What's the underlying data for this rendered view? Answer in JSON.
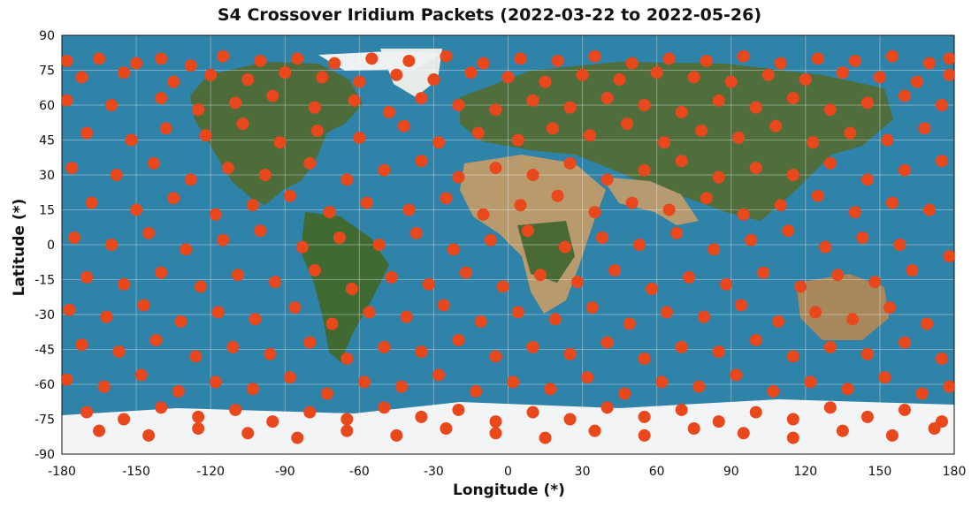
{
  "chart_data": {
    "type": "scatter",
    "title": "S4 Crossover Iridium Packets (2022-03-22 to 2022-05-26)",
    "xlabel": "Longitude (*)",
    "ylabel": "Latitude (*)",
    "xlim": [
      -180,
      180
    ],
    "ylim": [
      -90,
      90
    ],
    "xticks": [
      -180,
      -150,
      -120,
      -90,
      -60,
      -30,
      0,
      30,
      60,
      90,
      120,
      150,
      180
    ],
    "yticks": [
      90,
      75,
      60,
      45,
      30,
      15,
      0,
      -15,
      -30,
      -45,
      -60,
      -75,
      -90
    ],
    "grid": true,
    "background": "world satellite map",
    "marker_color": "#e8481c",
    "colors": {
      "ocean": "#2f82a8",
      "land": "#4e6b3a",
      "desert": "#c8a878",
      "ice": "#f2f4f5"
    },
    "series": [
      {
        "points": [
          [
            -178,
            79
          ],
          [
            -165,
            80
          ],
          [
            -150,
            78
          ],
          [
            -140,
            80
          ],
          [
            -128,
            77
          ],
          [
            -115,
            81
          ],
          [
            -100,
            79
          ],
          [
            -85,
            80
          ],
          [
            -70,
            78
          ],
          [
            -55,
            80
          ],
          [
            -40,
            79
          ],
          [
            -25,
            81
          ],
          [
            -10,
            78
          ],
          [
            5,
            80
          ],
          [
            20,
            79
          ],
          [
            35,
            81
          ],
          [
            50,
            78
          ],
          [
            65,
            80
          ],
          [
            80,
            79
          ],
          [
            95,
            81
          ],
          [
            110,
            78
          ],
          [
            125,
            80
          ],
          [
            140,
            79
          ],
          [
            155,
            81
          ],
          [
            170,
            78
          ],
          [
            178,
            80
          ],
          [
            -172,
            72
          ],
          [
            -155,
            74
          ],
          [
            -135,
            70
          ],
          [
            -120,
            73
          ],
          [
            -105,
            71
          ],
          [
            -90,
            74
          ],
          [
            -75,
            72
          ],
          [
            -60,
            70
          ],
          [
            -45,
            73
          ],
          [
            -30,
            71
          ],
          [
            -15,
            74
          ],
          [
            0,
            72
          ],
          [
            15,
            70
          ],
          [
            30,
            73
          ],
          [
            45,
            71
          ],
          [
            60,
            74
          ],
          [
            75,
            72
          ],
          [
            90,
            70
          ],
          [
            105,
            73
          ],
          [
            120,
            71
          ],
          [
            135,
            74
          ],
          [
            150,
            72
          ],
          [
            165,
            70
          ],
          [
            178,
            73
          ],
          [
            -178,
            62
          ],
          [
            -160,
            60
          ],
          [
            -140,
            63
          ],
          [
            -125,
            58
          ],
          [
            -110,
            61
          ],
          [
            -95,
            64
          ],
          [
            -78,
            59
          ],
          [
            -62,
            62
          ],
          [
            -48,
            57
          ],
          [
            -35,
            63
          ],
          [
            -20,
            60
          ],
          [
            -5,
            58
          ],
          [
            10,
            62
          ],
          [
            25,
            59
          ],
          [
            40,
            63
          ],
          [
            55,
            60
          ],
          [
            70,
            57
          ],
          [
            85,
            62
          ],
          [
            100,
            59
          ],
          [
            115,
            63
          ],
          [
            130,
            58
          ],
          [
            145,
            61
          ],
          [
            160,
            64
          ],
          [
            175,
            60
          ],
          [
            -170,
            48
          ],
          [
            -152,
            45
          ],
          [
            -138,
            50
          ],
          [
            -122,
            47
          ],
          [
            -107,
            52
          ],
          [
            -92,
            44
          ],
          [
            -77,
            49
          ],
          [
            -60,
            46
          ],
          [
            -42,
            51
          ],
          [
            -28,
            44
          ],
          [
            -12,
            48
          ],
          [
            4,
            45
          ],
          [
            18,
            50
          ],
          [
            33,
            47
          ],
          [
            48,
            52
          ],
          [
            63,
            44
          ],
          [
            78,
            49
          ],
          [
            93,
            46
          ],
          [
            108,
            51
          ],
          [
            123,
            44
          ],
          [
            138,
            48
          ],
          [
            153,
            45
          ],
          [
            168,
            50
          ],
          [
            -176,
            33
          ],
          [
            -158,
            30
          ],
          [
            -143,
            35
          ],
          [
            -128,
            28
          ],
          [
            -113,
            33
          ],
          [
            -98,
            30
          ],
          [
            -80,
            35
          ],
          [
            -65,
            28
          ],
          [
            -50,
            32
          ],
          [
            -35,
            36
          ],
          [
            -20,
            29
          ],
          [
            -5,
            33
          ],
          [
            10,
            30
          ],
          [
            25,
            35
          ],
          [
            40,
            28
          ],
          [
            55,
            32
          ],
          [
            70,
            36
          ],
          [
            85,
            29
          ],
          [
            100,
            33
          ],
          [
            115,
            30
          ],
          [
            130,
            35
          ],
          [
            145,
            28
          ],
          [
            160,
            32
          ],
          [
            175,
            36
          ],
          [
            -168,
            18
          ],
          [
            -150,
            15
          ],
          [
            -135,
            20
          ],
          [
            -118,
            13
          ],
          [
            -103,
            17
          ],
          [
            -88,
            21
          ],
          [
            -72,
            14
          ],
          [
            -57,
            18
          ],
          [
            -40,
            15
          ],
          [
            -25,
            20
          ],
          [
            -10,
            13
          ],
          [
            5,
            17
          ],
          [
            20,
            21
          ],
          [
            35,
            14
          ],
          [
            50,
            18
          ],
          [
            65,
            15
          ],
          [
            80,
            20
          ],
          [
            95,
            13
          ],
          [
            110,
            17
          ],
          [
            125,
            21
          ],
          [
            140,
            14
          ],
          [
            155,
            18
          ],
          [
            170,
            15
          ],
          [
            -175,
            3
          ],
          [
            -160,
            0
          ],
          [
            -145,
            5
          ],
          [
            -130,
            -2
          ],
          [
            -115,
            2
          ],
          [
            -100,
            6
          ],
          [
            -83,
            -1
          ],
          [
            -68,
            3
          ],
          [
            -52,
            0
          ],
          [
            -37,
            5
          ],
          [
            -22,
            -2
          ],
          [
            -7,
            2
          ],
          [
            8,
            6
          ],
          [
            23,
            -1
          ],
          [
            38,
            3
          ],
          [
            53,
            0
          ],
          [
            68,
            5
          ],
          [
            83,
            -2
          ],
          [
            98,
            2
          ],
          [
            113,
            6
          ],
          [
            128,
            -1
          ],
          [
            143,
            3
          ],
          [
            158,
            0
          ],
          [
            178,
            -5
          ],
          [
            -170,
            -14
          ],
          [
            -155,
            -17
          ],
          [
            -140,
            -12
          ],
          [
            -124,
            -18
          ],
          [
            -109,
            -13
          ],
          [
            -94,
            -16
          ],
          [
            -78,
            -11
          ],
          [
            -63,
            -19
          ],
          [
            -47,
            -14
          ],
          [
            -32,
            -17
          ],
          [
            -17,
            -12
          ],
          [
            -2,
            -18
          ],
          [
            13,
            -13
          ],
          [
            28,
            -16
          ],
          [
            43,
            -11
          ],
          [
            58,
            -19
          ],
          [
            73,
            -14
          ],
          [
            88,
            -17
          ],
          [
            103,
            -12
          ],
          [
            118,
            -18
          ],
          [
            133,
            -13
          ],
          [
            148,
            -16
          ],
          [
            163,
            -11
          ],
          [
            -177,
            -28
          ],
          [
            -162,
            -31
          ],
          [
            -147,
            -26
          ],
          [
            -132,
            -33
          ],
          [
            -117,
            -29
          ],
          [
            -102,
            -32
          ],
          [
            -86,
            -27
          ],
          [
            -71,
            -34
          ],
          [
            -56,
            -29
          ],
          [
            -41,
            -31
          ],
          [
            -26,
            -26
          ],
          [
            -11,
            -33
          ],
          [
            4,
            -29
          ],
          [
            19,
            -32
          ],
          [
            34,
            -27
          ],
          [
            49,
            -34
          ],
          [
            64,
            -29
          ],
          [
            79,
            -31
          ],
          [
            94,
            -26
          ],
          [
            109,
            -33
          ],
          [
            124,
            -29
          ],
          [
            139,
            -32
          ],
          [
            154,
            -27
          ],
          [
            169,
            -34
          ],
          [
            -172,
            -43
          ],
          [
            -157,
            -46
          ],
          [
            -142,
            -41
          ],
          [
            -126,
            -48
          ],
          [
            -111,
            -44
          ],
          [
            -96,
            -47
          ],
          [
            -80,
            -42
          ],
          [
            -65,
            -49
          ],
          [
            -50,
            -44
          ],
          [
            -35,
            -46
          ],
          [
            -20,
            -41
          ],
          [
            -5,
            -48
          ],
          [
            10,
            -44
          ],
          [
            25,
            -47
          ],
          [
            40,
            -42
          ],
          [
            55,
            -49
          ],
          [
            70,
            -44
          ],
          [
            85,
            -46
          ],
          [
            100,
            -41
          ],
          [
            115,
            -48
          ],
          [
            130,
            -44
          ],
          [
            145,
            -47
          ],
          [
            160,
            -42
          ],
          [
            175,
            -49
          ],
          [
            -178,
            -58
          ],
          [
            -163,
            -61
          ],
          [
            -148,
            -56
          ],
          [
            -133,
            -63
          ],
          [
            -118,
            -59
          ],
          [
            -103,
            -62
          ],
          [
            -88,
            -57
          ],
          [
            -73,
            -64
          ],
          [
            -58,
            -59
          ],
          [
            -43,
            -61
          ],
          [
            -28,
            -56
          ],
          [
            -13,
            -63
          ],
          [
            2,
            -59
          ],
          [
            17,
            -62
          ],
          [
            32,
            -57
          ],
          [
            47,
            -64
          ],
          [
            62,
            -59
          ],
          [
            77,
            -61
          ],
          [
            92,
            -56
          ],
          [
            107,
            -63
          ],
          [
            122,
            -59
          ],
          [
            137,
            -62
          ],
          [
            152,
            -57
          ],
          [
            167,
            -64
          ],
          [
            178,
            -61
          ],
          [
            -170,
            -72
          ],
          [
            -155,
            -75
          ],
          [
            -140,
            -70
          ],
          [
            -125,
            -74
          ],
          [
            -110,
            -71
          ],
          [
            -95,
            -76
          ],
          [
            -80,
            -72
          ],
          [
            -65,
            -75
          ],
          [
            -50,
            -70
          ],
          [
            -35,
            -74
          ],
          [
            -20,
            -71
          ],
          [
            -5,
            -76
          ],
          [
            10,
            -72
          ],
          [
            25,
            -75
          ],
          [
            40,
            -70
          ],
          [
            55,
            -74
          ],
          [
            70,
            -71
          ],
          [
            85,
            -76
          ],
          [
            100,
            -72
          ],
          [
            115,
            -75
          ],
          [
            130,
            -70
          ],
          [
            145,
            -74
          ],
          [
            160,
            -71
          ],
          [
            175,
            -76
          ],
          [
            -165,
            -80
          ],
          [
            -145,
            -82
          ],
          [
            -125,
            -79
          ],
          [
            -105,
            -81
          ],
          [
            -85,
            -83
          ],
          [
            -65,
            -80
          ],
          [
            -45,
            -82
          ],
          [
            -25,
            -79
          ],
          [
            -5,
            -81
          ],
          [
            15,
            -83
          ],
          [
            35,
            -80
          ],
          [
            55,
            -82
          ],
          [
            75,
            -79
          ],
          [
            95,
            -81
          ],
          [
            115,
            -83
          ],
          [
            135,
            -80
          ],
          [
            155,
            -82
          ],
          [
            172,
            -79
          ]
        ]
      }
    ]
  }
}
